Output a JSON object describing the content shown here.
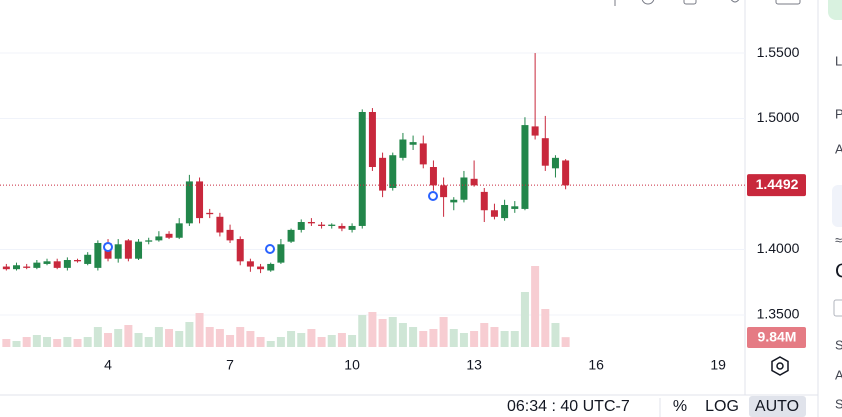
{
  "chart_data": {
    "type": "candlestick",
    "xlim": [
      1.344,
      19.66
    ],
    "xticks": [
      4,
      7,
      10,
      13,
      16,
      19
    ],
    "ylim": [
      1.3233,
      1.5905
    ],
    "yticks": [
      {
        "value": 1.55,
        "label": "1.5500"
      },
      {
        "value": 1.5,
        "label": "1.5000"
      },
      {
        "value": 1.4,
        "label": "1.4000"
      },
      {
        "value": 1.35,
        "label": "1.3500"
      }
    ],
    "grid": true,
    "up_color": "#22864a",
    "down_color": "#c8283c",
    "up_volume_color": "#cfe6d6",
    "down_volume_color": "#f7cdd2",
    "x": [
      1.5,
      1.75,
      2,
      2.25,
      2.5,
      2.75,
      3,
      3.25,
      3.5,
      3.75,
      4,
      4.25,
      4.5,
      4.75,
      5,
      5.25,
      5.5,
      5.75,
      6,
      6.25,
      6.5,
      6.75,
      7,
      7.25,
      7.5,
      7.75,
      8,
      8.25,
      8.5,
      8.75,
      9,
      9.25,
      9.5,
      9.75,
      10,
      10.25,
      10.5,
      10.75,
      11,
      11.25,
      11.5,
      11.75,
      12,
      12.25,
      12.5,
      12.75,
      13,
      13.25,
      13.5,
      13.75,
      14,
      14.25,
      14.5,
      14.75,
      15,
      15.25
    ],
    "open": [
      1.387,
      1.385,
      1.387,
      1.386,
      1.389,
      1.391,
      1.386,
      1.392,
      1.389,
      1.386,
      1.405,
      1.393,
      1.407,
      1.393,
      1.406,
      1.407,
      1.412,
      1.409,
      1.42,
      1.452,
      1.428,
      1.425,
      1.415,
      1.408,
      1.391,
      1.387,
      1.384,
      1.39,
      1.406,
      1.415,
      1.421,
      1.419,
      1.418,
      1.418,
      1.415,
      1.418,
      1.505,
      1.47,
      1.447,
      1.47,
      1.48,
      1.481,
      1.463,
      1.449,
      1.436,
      1.438,
      1.454,
      1.444,
      1.43,
      1.424,
      1.431,
      1.431,
      1.494,
      1.485,
      1.462,
      1.468
    ],
    "high": [
      1.389,
      1.39,
      1.389,
      1.392,
      1.393,
      1.393,
      1.394,
      1.393,
      1.398,
      1.407,
      1.408,
      1.408,
      1.408,
      1.408,
      1.409,
      1.414,
      1.414,
      1.424,
      1.457,
      1.455,
      1.431,
      1.428,
      1.419,
      1.41,
      1.393,
      1.389,
      1.39,
      1.408,
      1.416,
      1.423,
      1.424,
      1.421,
      1.42,
      1.42,
      1.42,
      1.507,
      1.508,
      1.474,
      1.474,
      1.489,
      1.487,
      1.487,
      1.468,
      1.455,
      1.44,
      1.46,
      1.468,
      1.447,
      1.435,
      1.438,
      1.437,
      1.501,
      1.55,
      1.502,
      1.472,
      1.469
    ],
    "low": [
      1.384,
      1.384,
      1.385,
      1.385,
      1.388,
      1.385,
      1.384,
      1.39,
      1.388,
      1.384,
      1.391,
      1.39,
      1.391,
      1.392,
      1.404,
      1.406,
      1.408,
      1.408,
      1.418,
      1.42,
      1.424,
      1.41,
      1.405,
      1.388,
      1.383,
      1.382,
      1.383,
      1.389,
      1.405,
      1.413,
      1.418,
      1.416,
      1.416,
      1.414,
      1.413,
      1.416,
      1.46,
      1.44,
      1.445,
      1.468,
      1.476,
      1.462,
      1.445,
      1.425,
      1.43,
      1.436,
      1.448,
      1.421,
      1.423,
      1.422,
      1.428,
      1.43,
      1.484,
      1.46,
      1.455,
      1.446
    ],
    "close": [
      1.385,
      1.388,
      1.386,
      1.39,
      1.391,
      1.386,
      1.392,
      1.391,
      1.396,
      1.405,
      1.393,
      1.404,
      1.393,
      1.406,
      1.407,
      1.41,
      1.409,
      1.42,
      1.452,
      1.424,
      1.427,
      1.413,
      1.407,
      1.391,
      1.387,
      1.385,
      1.389,
      1.404,
      1.415,
      1.421,
      1.42,
      1.418,
      1.419,
      1.416,
      1.418,
      1.505,
      1.463,
      1.445,
      1.472,
      1.484,
      1.482,
      1.465,
      1.449,
      1.44,
      1.438,
      1.455,
      1.449,
      1.43,
      1.425,
      1.434,
      1.433,
      1.495,
      1.487,
      1.464,
      1.47,
      1.449
    ],
    "volume": [
      8,
      6,
      10,
      12,
      10,
      8,
      10,
      8,
      10,
      20,
      14,
      18,
      22,
      14,
      10,
      20,
      18,
      16,
      25,
      34,
      20,
      18,
      12,
      20,
      16,
      10,
      6,
      10,
      16,
      14,
      18,
      10,
      12,
      14,
      12,
      32,
      35,
      28,
      30,
      24,
      20,
      16,
      18,
      30,
      18,
      14,
      16,
      24,
      20,
      16,
      16,
      55,
      81,
      38,
      24,
      9.84
    ],
    "last_volume_label": "9.84M",
    "last_price": {
      "value": 1.4492,
      "label": "1.4492"
    }
  },
  "status_bar": {
    "time": "06:34 : 40 UTC-7",
    "percent": "%",
    "log": "LOG",
    "auto": "AUTO"
  },
  "side_panel": [
    "L",
    "P",
    "A",
    "≈",
    "C",
    "S",
    "A",
    "S"
  ]
}
